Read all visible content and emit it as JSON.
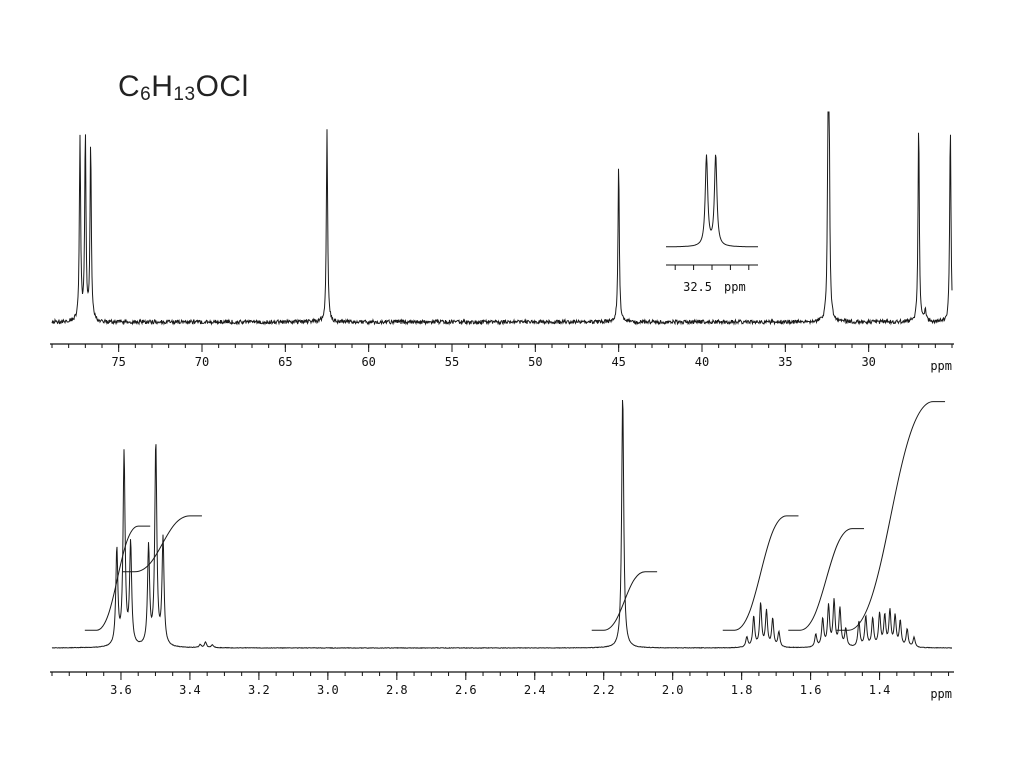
{
  "formula": {
    "element_c": "C",
    "count_c": "6",
    "element_h": "H",
    "count_h": "13",
    "rest": "OCl"
  },
  "chart_data": [
    {
      "type": "line",
      "title": "",
      "xlabel": "ppm",
      "ylabel": "",
      "xlim": [
        79,
        25
      ],
      "xticks": [
        75,
        70,
        65,
        60,
        55,
        50,
        45,
        40,
        35,
        30
      ],
      "peaks": [
        {
          "ppm": 77.32,
          "height": 0.92
        },
        {
          "ppm": 77.0,
          "height": 0.94
        },
        {
          "ppm": 76.68,
          "height": 0.9
        },
        {
          "ppm": 62.5,
          "height": 0.96
        },
        {
          "ppm": 45.0,
          "height": 0.8
        },
        {
          "ppm": 32.43,
          "height": 0.96
        },
        {
          "ppm": 32.38,
          "height": 0.96
        },
        {
          "ppm": 27.0,
          "height": 1.0
        },
        {
          "ppm": 26.6,
          "height": 0.07
        },
        {
          "ppm": 25.1,
          "height": 0.99
        }
      ],
      "inset": {
        "label": "32.5",
        "unit": "ppm",
        "peaks": [
          {
            "ppm": 32.43,
            "height": 0.95
          },
          {
            "ppm": 32.38,
            "height": 0.96
          }
        ]
      }
    },
    {
      "type": "line",
      "title": "",
      "xlabel": "ppm",
      "ylabel": "",
      "xlim": [
        3.8,
        1.19
      ],
      "xticks": [
        3.6,
        3.4,
        3.2,
        3.0,
        2.8,
        2.6,
        2.4,
        2.2,
        2.0,
        1.8,
        1.6,
        1.4
      ],
      "tick_labels": [
        "3.6",
        "3.4",
        "3.2",
        "3.0",
        "2.8",
        "2.6",
        "2.4",
        "2.2",
        "2.0",
        "1.8",
        "1.6",
        "1.4"
      ],
      "peaks": [
        {
          "ppm": 3.612,
          "height": 0.38
        },
        {
          "ppm": 3.591,
          "height": 0.76
        },
        {
          "ppm": 3.572,
          "height": 0.4
        },
        {
          "ppm": 3.52,
          "height": 0.39
        },
        {
          "ppm": 3.499,
          "height": 0.8
        },
        {
          "ppm": 3.478,
          "height": 0.42
        },
        {
          "ppm": 3.37,
          "height": 0.012
        },
        {
          "ppm": 3.355,
          "height": 0.022
        },
        {
          "ppm": 3.335,
          "height": 0.012
        },
        {
          "ppm": 2.145,
          "height": 1.0
        },
        {
          "ppm": 1.785,
          "height": 0.04
        },
        {
          "ppm": 1.765,
          "height": 0.12
        },
        {
          "ppm": 1.745,
          "height": 0.17
        },
        {
          "ppm": 1.728,
          "height": 0.14
        },
        {
          "ppm": 1.71,
          "height": 0.11
        },
        {
          "ppm": 1.692,
          "height": 0.06
        },
        {
          "ppm": 1.585,
          "height": 0.05
        },
        {
          "ppm": 1.565,
          "height": 0.11
        },
        {
          "ppm": 1.548,
          "height": 0.16
        },
        {
          "ppm": 1.532,
          "height": 0.18
        },
        {
          "ppm": 1.515,
          "height": 0.15
        },
        {
          "ppm": 1.498,
          "height": 0.07
        },
        {
          "ppm": 1.46,
          "height": 0.1
        },
        {
          "ppm": 1.44,
          "height": 0.12
        },
        {
          "ppm": 1.42,
          "height": 0.11
        },
        {
          "ppm": 1.4,
          "height": 0.13
        },
        {
          "ppm": 1.385,
          "height": 0.12
        },
        {
          "ppm": 1.37,
          "height": 0.14
        },
        {
          "ppm": 1.355,
          "height": 0.12
        },
        {
          "ppm": 1.34,
          "height": 0.1
        },
        {
          "ppm": 1.32,
          "height": 0.07
        },
        {
          "ppm": 1.3,
          "height": 0.04
        }
      ],
      "integrals": [
        {
          "from": 3.67,
          "to": 3.55,
          "start": 0.07,
          "end": 0.48
        },
        {
          "from": 3.56,
          "to": 3.4,
          "start": 0.3,
          "end": 0.52
        },
        {
          "from": 2.2,
          "to": 2.08,
          "start": 0.07,
          "end": 0.3
        },
        {
          "from": 1.82,
          "to": 1.67,
          "start": 0.07,
          "end": 0.52
        },
        {
          "from": 1.63,
          "to": 1.48,
          "start": 0.07,
          "end": 0.47
        },
        {
          "from": 1.49,
          "to": 1.245,
          "start": 0.07,
          "end": 0.97
        }
      ]
    }
  ]
}
